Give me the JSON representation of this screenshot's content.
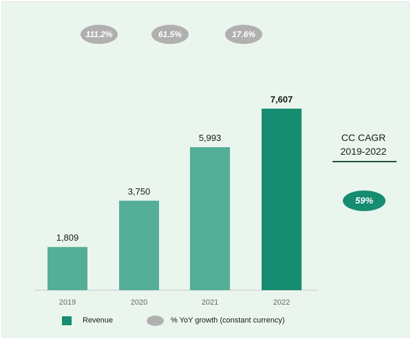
{
  "chart_data": {
    "type": "bar",
    "categories": [
      "2019",
      "2020",
      "2021",
      "2022"
    ],
    "series": [
      {
        "name": "Revenue",
        "values": [
          1809,
          3750,
          5993,
          7607
        ],
        "labels": [
          "1,809",
          "3,750",
          "5,993",
          "7,607"
        ]
      }
    ],
    "growth": {
      "name": "% YoY growth (constant currency)",
      "labels": [
        "111.2%",
        "61.5%",
        "17.6%"
      ]
    },
    "ylim": [
      0,
      7607
    ],
    "grid": false,
    "legend_position": "bottom"
  },
  "cagr": {
    "title_line1": "CC CAGR",
    "title_line2": "2019-2022",
    "value": "59%"
  },
  "legend": {
    "revenue_label": "Revenue",
    "growth_label": "% YoY growth (constant currency)"
  },
  "colors": {
    "background": "#eaf5ee",
    "bar": "#55ae98",
    "bar_highlight": "#168c70",
    "growth_pill": "#b0b0b0",
    "axis": "#c8c8c8"
  }
}
